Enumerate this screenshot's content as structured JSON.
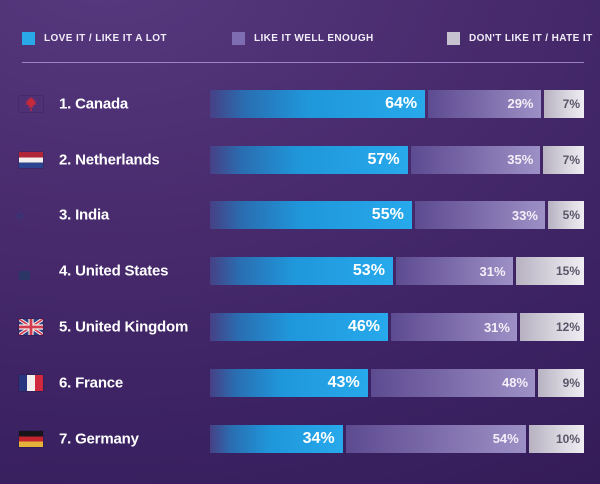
{
  "legend": {
    "items": [
      {
        "key": "love",
        "label": "LOVE IT / LIKE IT A LOT",
        "swatch_color": "#2aa9e8"
      },
      {
        "key": "like",
        "label": "LIKE IT WELL ENOUGH",
        "swatch_color": "#7e6db0"
      },
      {
        "key": "dislike",
        "label": "DON'T LIKE IT / HATE IT",
        "swatch_color": "#c6c2cf"
      }
    ]
  },
  "chart_data": {
    "type": "bar",
    "orientation": "horizontal",
    "stacked": true,
    "normalized_per_row": true,
    "categories": [
      "1. Canada",
      "2. Netherlands",
      "3. India",
      "4. United States",
      "5. United Kingdom",
      "6. France",
      "7. Germany"
    ],
    "series": [
      {
        "name": "Love it / Like it a lot",
        "color": "#27a9ec",
        "values": [
          64,
          57,
          55,
          53,
          46,
          43,
          34
        ]
      },
      {
        "name": "Like it well enough",
        "color": "#8a7ab6",
        "values": [
          29,
          35,
          33,
          31,
          31,
          48,
          54
        ]
      },
      {
        "name": "Don't like it / Hate it",
        "color": "#d8d5de",
        "values": [
          7,
          7,
          5,
          15,
          12,
          9,
          10
        ]
      }
    ],
    "value_unit": "%",
    "legend_position": "top",
    "grid": false
  },
  "rows": [
    {
      "label": "1. Canada",
      "flag": "ca",
      "segments": [
        {
          "key": "love",
          "value": 64,
          "label": "64%"
        },
        {
          "key": "like",
          "value": 29,
          "label": "29%"
        },
        {
          "key": "dislike",
          "value": 7,
          "label": "7%"
        }
      ]
    },
    {
      "label": "2. Netherlands",
      "flag": "nl",
      "segments": [
        {
          "key": "love",
          "value": 57,
          "label": "57%"
        },
        {
          "key": "like",
          "value": 35,
          "label": "35%"
        },
        {
          "key": "dislike",
          "value": 7,
          "label": "7%"
        }
      ]
    },
    {
      "label": "3. India",
      "flag": "in",
      "segments": [
        {
          "key": "love",
          "value": 55,
          "label": "55%"
        },
        {
          "key": "like",
          "value": 33,
          "label": "33%"
        },
        {
          "key": "dislike",
          "value": 5,
          "label": "5%"
        }
      ]
    },
    {
      "label": "4. United States",
      "flag": "us",
      "segments": [
        {
          "key": "love",
          "value": 53,
          "label": "53%"
        },
        {
          "key": "like",
          "value": 31,
          "label": "31%"
        },
        {
          "key": "dislike",
          "value": 15,
          "label": "15%"
        }
      ]
    },
    {
      "label": "5. United Kingdom",
      "flag": "gb",
      "segments": [
        {
          "key": "love",
          "value": 46,
          "label": "46%"
        },
        {
          "key": "like",
          "value": 31,
          "label": "31%"
        },
        {
          "key": "dislike",
          "value": 12,
          "label": "12%"
        }
      ]
    },
    {
      "label": "6. France",
      "flag": "fr",
      "segments": [
        {
          "key": "love",
          "value": 43,
          "label": "43%"
        },
        {
          "key": "like",
          "value": 48,
          "label": "48%"
        },
        {
          "key": "dislike",
          "value": 9,
          "label": "9%"
        }
      ]
    },
    {
      "label": "7. Germany",
      "flag": "de",
      "segments": [
        {
          "key": "love",
          "value": 34,
          "label": "34%"
        },
        {
          "key": "like",
          "value": 54,
          "label": "54%"
        },
        {
          "key": "dislike",
          "value": 10,
          "label": "10%"
        }
      ]
    }
  ],
  "colors": {
    "background_top": "#57397f",
    "background_bottom": "#341c58",
    "bar_blue": "#27a9ec",
    "bar_purple": "#8a7ab6",
    "bar_gray": "#d8d5de",
    "divider": "#af96dc"
  }
}
